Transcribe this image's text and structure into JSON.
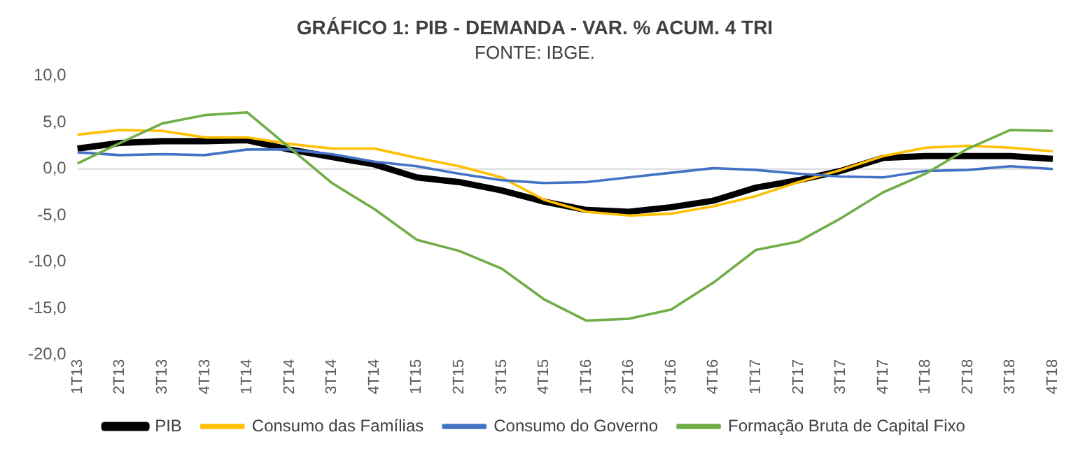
{
  "chart_data": {
    "type": "line",
    "title": "GRÁFICO 1: PIB - DEMANDA - VAR. % ACUM. 4 TRI",
    "subtitle": "FONTE: IBGE.",
    "categories": [
      "1T13",
      "2T13",
      "3T13",
      "4T13",
      "1T14",
      "2T14",
      "3T14",
      "4T14",
      "1T15",
      "2T15",
      "3T15",
      "4T15",
      "1T16",
      "2T16",
      "3T16",
      "4T16",
      "1T17",
      "2T17",
      "3T17",
      "4T17",
      "1T18",
      "2T18",
      "3T18",
      "4T18"
    ],
    "series": [
      {
        "name": "PIB",
        "color": "#000000",
        "values": [
          2.2,
          2.8,
          3.0,
          3.0,
          3.1,
          2.1,
          1.3,
          0.5,
          -0.9,
          -1.4,
          -2.3,
          -3.5,
          -4.4,
          -4.6,
          -4.1,
          -3.4,
          -2.0,
          -1.2,
          -0.2,
          1.2,
          1.4,
          1.4,
          1.4,
          1.1
        ]
      },
      {
        "name": "Consumo das Famílias",
        "color": "#ffc000",
        "values": [
          3.7,
          4.2,
          4.1,
          3.4,
          3.4,
          2.7,
          2.2,
          2.2,
          1.2,
          0.3,
          -0.9,
          -3.3,
          -4.6,
          -5.0,
          -4.8,
          -4.0,
          -2.9,
          -1.4,
          -0.1,
          1.4,
          2.3,
          2.5,
          2.3,
          1.9
        ]
      },
      {
        "name": "Consumo do Governo",
        "color": "#4472c4",
        "values": [
          1.8,
          1.5,
          1.6,
          1.5,
          2.1,
          2.1,
          1.6,
          0.8,
          0.3,
          -0.5,
          -1.2,
          -1.5,
          -1.4,
          -0.9,
          -0.4,
          0.1,
          -0.1,
          -0.5,
          -0.8,
          -0.9,
          -0.2,
          -0.1,
          0.3,
          0.0
        ]
      },
      {
        "name": "Formação Bruta de Capital Fixo",
        "color": "#70ad47",
        "values": [
          0.6,
          2.8,
          4.9,
          5.8,
          6.1,
          2.3,
          -1.5,
          -4.3,
          -7.6,
          -8.8,
          -10.7,
          -14.0,
          -16.3,
          -16.1,
          -15.1,
          -12.2,
          -8.7,
          -7.8,
          -5.3,
          -2.5,
          -0.5,
          2.2,
          4.2,
          4.1
        ]
      }
    ],
    "ylim": [
      -20,
      10
    ],
    "yticks": [
      {
        "value": -20,
        "label": "-20,0"
      },
      {
        "value": -15,
        "label": "-15,0"
      },
      {
        "value": -10,
        "label": "-10,0"
      },
      {
        "value": -5,
        "label": "-5,0"
      },
      {
        "value": 0,
        "label": "0,0"
      },
      {
        "value": 5,
        "label": "5,0"
      },
      {
        "value": 10,
        "label": "10,0"
      }
    ],
    "ref_lines": [
      {
        "axis": "y",
        "value": 0,
        "color": "#d9d9d9"
      }
    ],
    "grid": false,
    "legend": "bottom",
    "marker": "none",
    "line_style": "solid"
  }
}
